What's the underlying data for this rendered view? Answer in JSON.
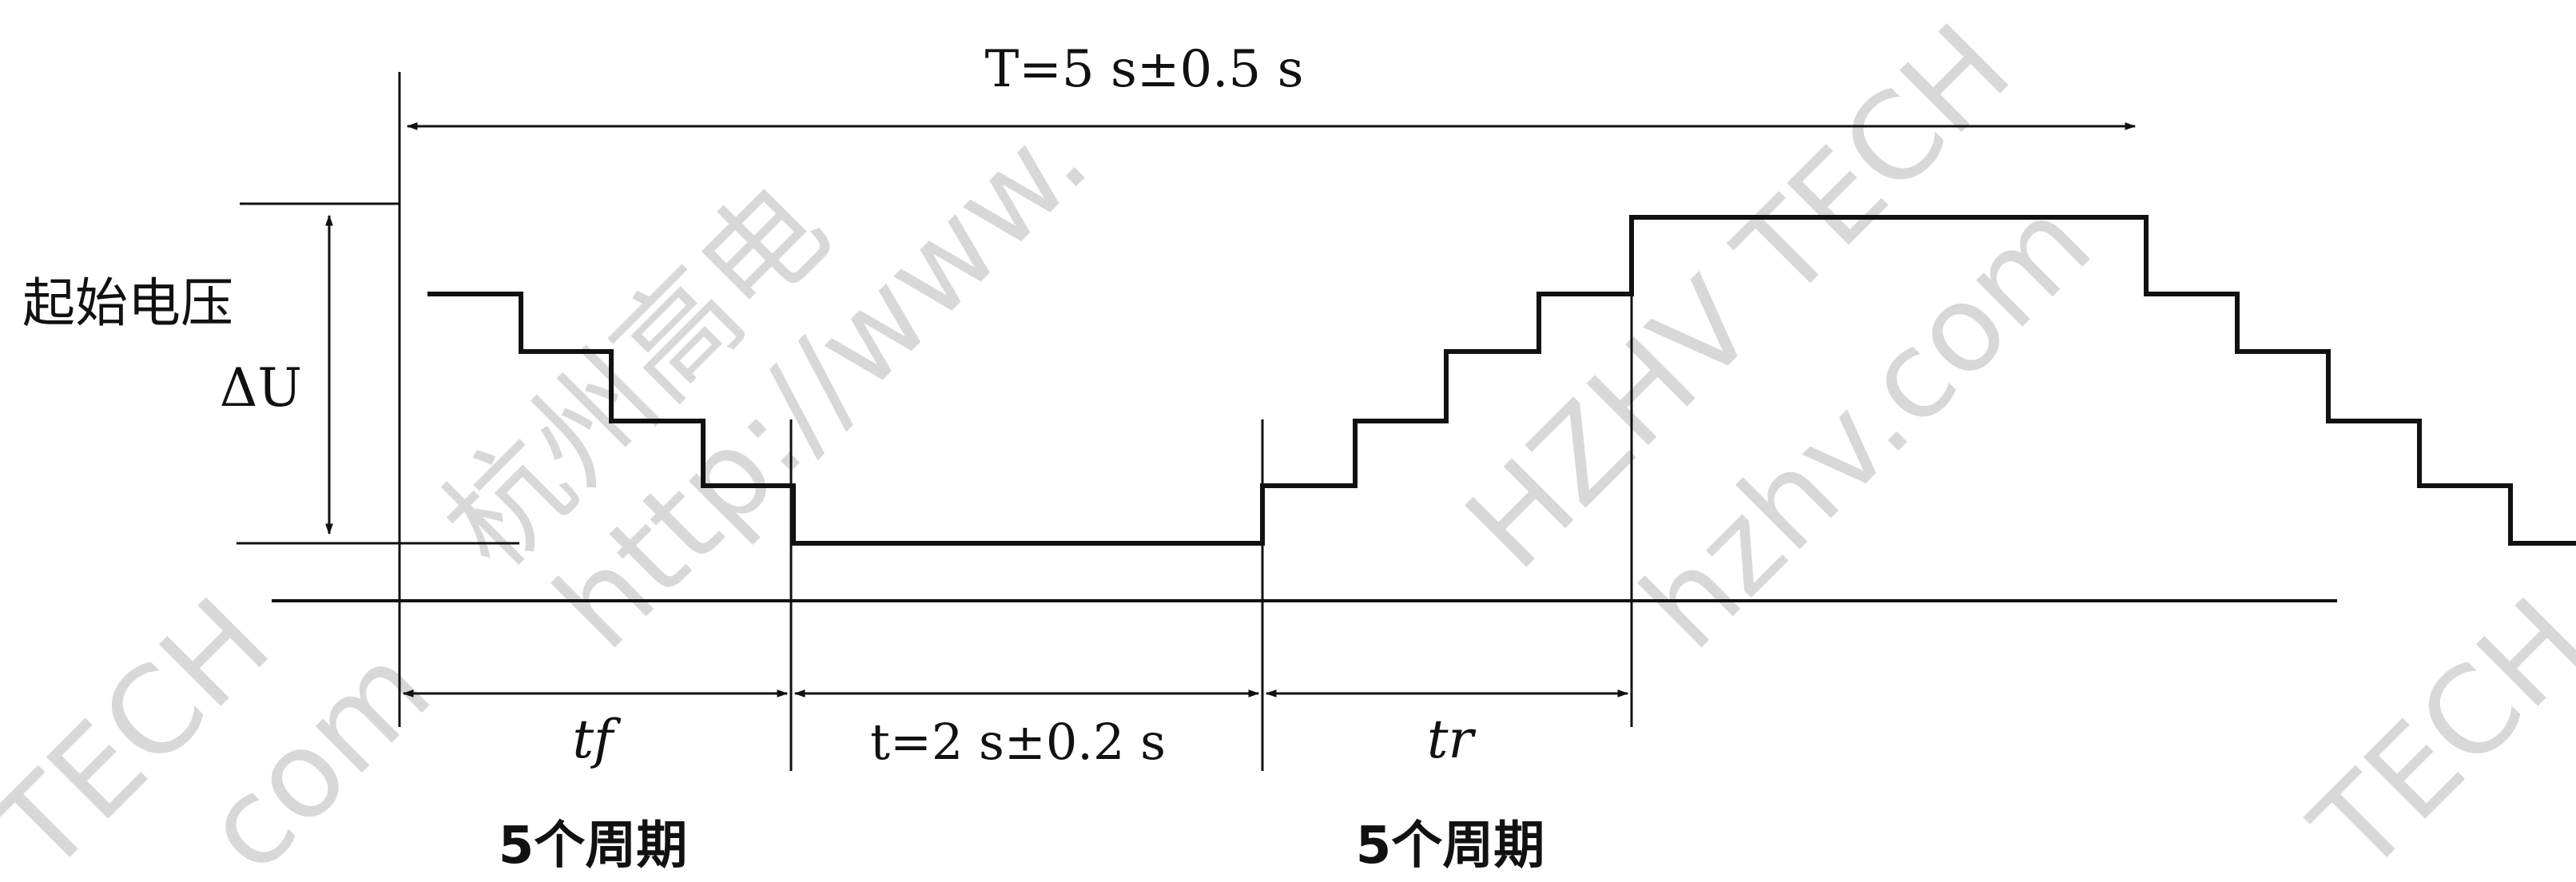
{
  "labels": {
    "period_T": "T=5 s±0.5 s",
    "start_voltage": "起始电压",
    "delta_u": "ΔU",
    "t_f": "tf",
    "t_hold": "t=2 s±0.2 s",
    "t_r": "tr",
    "cycles_left": "5个周期",
    "cycles_right": "5个周期"
  },
  "watermark": {
    "texts": [
      "杭州高电",
      "http://www.",
      "HZHV TECH",
      "hzhv.com",
      "TECH",
      "com",
      "TECH"
    ]
  },
  "colors": {
    "line": "#111111",
    "watermark": "#d8d8d8",
    "background": "#ffffff"
  }
}
